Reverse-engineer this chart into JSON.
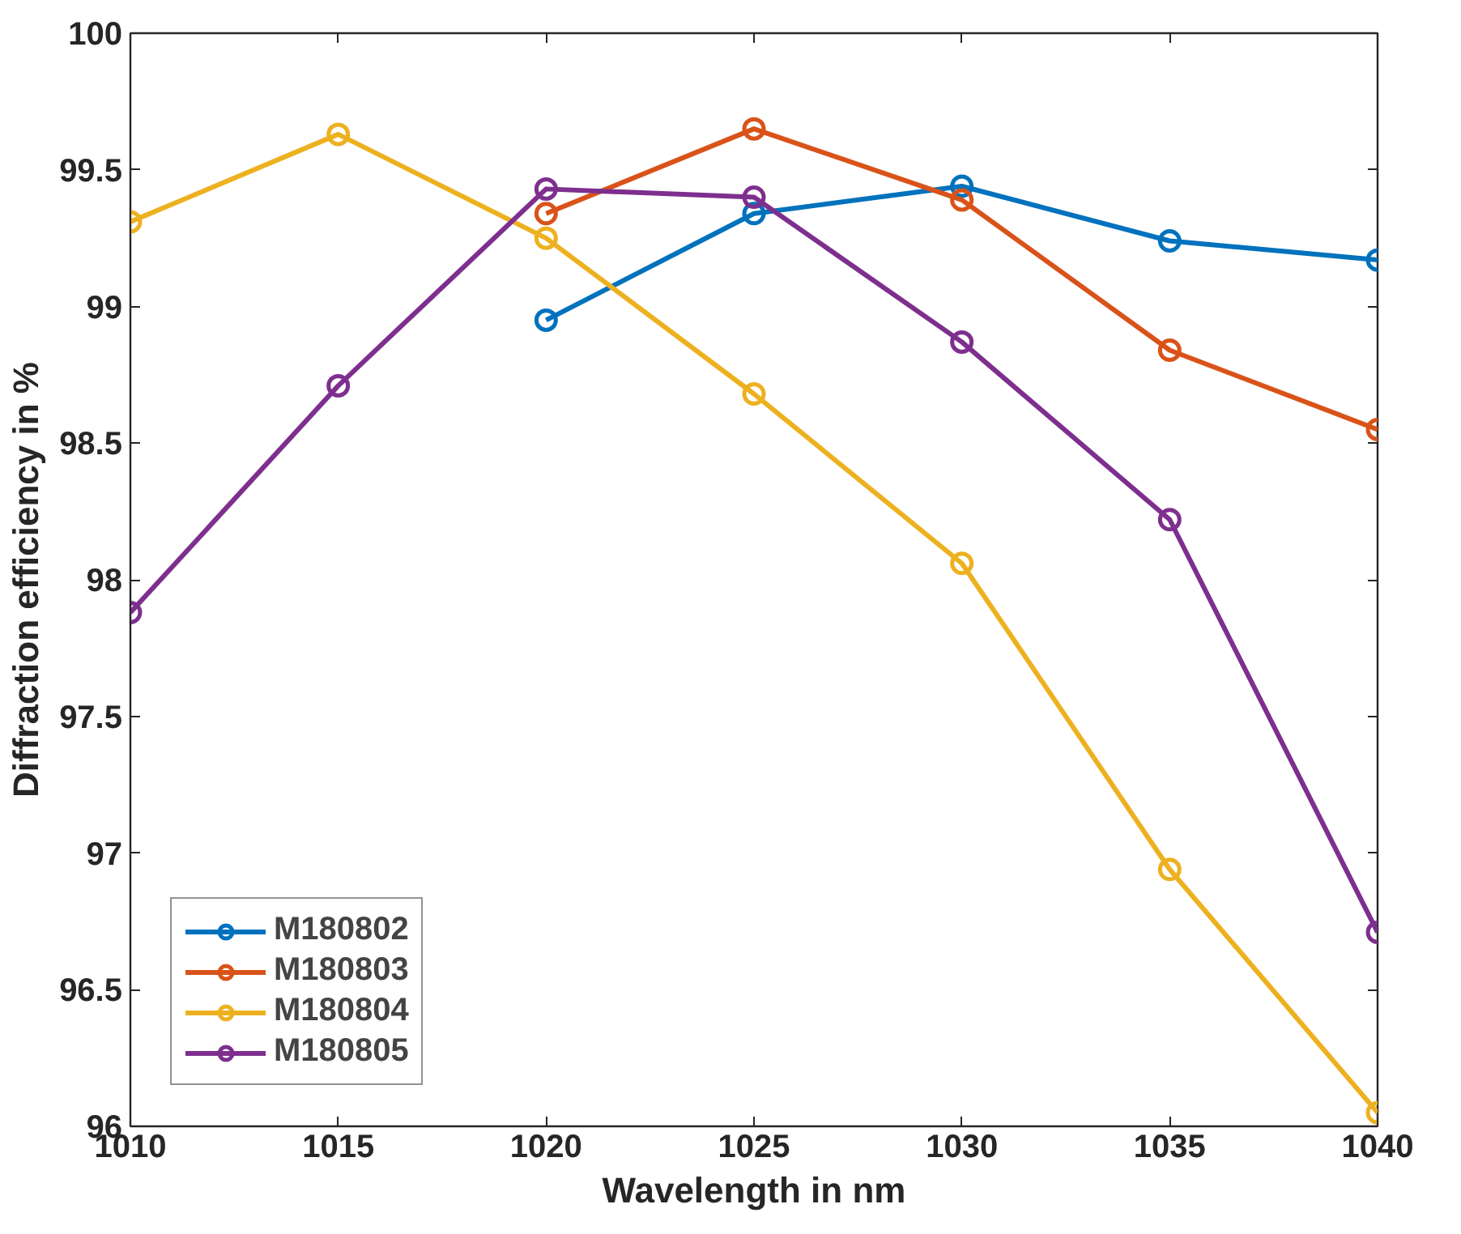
{
  "chart_data": {
    "type": "line",
    "xlabel": "Wavelength in nm",
    "ylabel": "Diffraction efficiency in %",
    "x": [
      1010,
      1015,
      1020,
      1025,
      1030,
      1035,
      1040
    ],
    "series": [
      {
        "name": "M180802",
        "color": "#0072bd",
        "values": [
          null,
          null,
          98.95,
          99.34,
          99.44,
          99.24,
          99.17
        ]
      },
      {
        "name": "M180803",
        "color": "#d95319",
        "values": [
          null,
          null,
          99.34,
          99.65,
          99.39,
          98.84,
          98.55
        ]
      },
      {
        "name": "M180804",
        "color": "#edb120",
        "values": [
          99.31,
          99.63,
          99.25,
          98.68,
          98.06,
          96.94,
          96.05
        ]
      },
      {
        "name": "M180805",
        "color": "#7e2f8e",
        "values": [
          97.88,
          98.71,
          99.43,
          99.4,
          98.87,
          98.22,
          96.71
        ]
      }
    ],
    "xlim": [
      1010,
      1040
    ],
    "xticks": [
      1010,
      1015,
      1020,
      1025,
      1030,
      1035,
      1040
    ],
    "ylim": [
      96,
      100
    ],
    "yticks": [
      96,
      96.5,
      97,
      97.5,
      98,
      98.5,
      99,
      99.5,
      100
    ],
    "grid": false,
    "legend": "bottom left",
    "marker": "circle",
    "line_style": "solid"
  }
}
